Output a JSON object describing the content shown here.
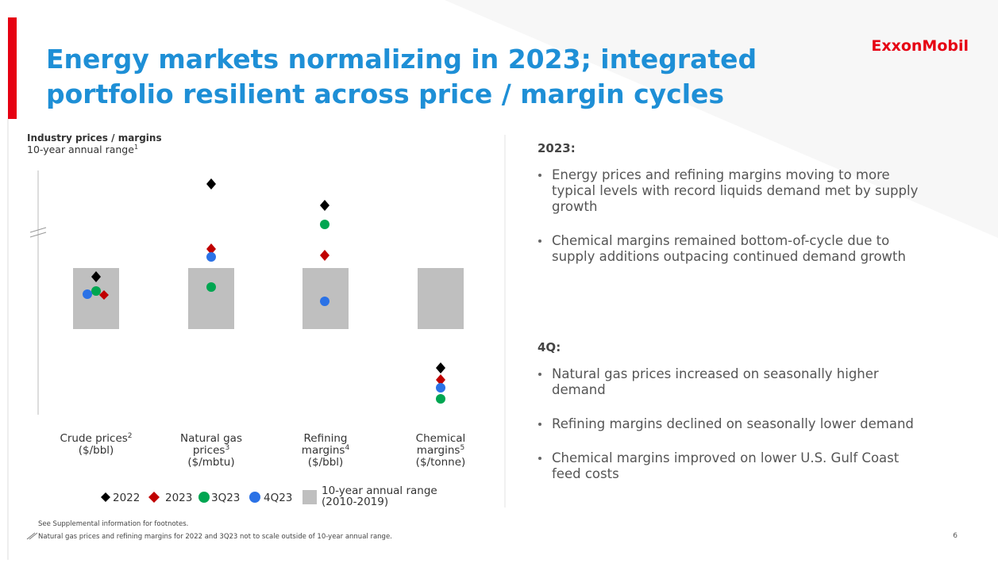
{
  "slide": {
    "title": [
      "Energy markets normalizing in 2023; integrated",
      "portfolio resilient across price / margin cycles"
    ],
    "logo": "ExxonMobil",
    "chart": {
      "heading": "Industry prices / margins",
      "subheading": "10-year annual range",
      "subheading_sup": "1",
      "categories": [
        {
          "lines": [
            "Crude prices"
          ],
          "sup": "2",
          "unit": "($/bbl)"
        },
        {
          "lines": [
            "Natural gas",
            "prices"
          ],
          "sup": "3",
          "unit": "($/mbtu)"
        },
        {
          "lines": [
            "Refining",
            "margins"
          ],
          "sup": "4",
          "unit": "($/bbl)"
        },
        {
          "lines": [
            "Chemical",
            "margins"
          ],
          "sup": "5",
          "unit": "($/tonne)"
        }
      ],
      "legend": [
        "2022",
        "2023",
        "3Q23",
        "4Q23"
      ],
      "legend_range": [
        "10-year annual range",
        "(2010-2019)"
      ]
    },
    "sections": [
      {
        "heading": "2023:",
        "bullets": [
          [
            "Energy prices and refining margins moving to more",
            "typical levels with record liquids demand met by supply",
            "growth"
          ],
          [
            "Chemical margins remained bottom-of-cycle due to",
            "supply additions outpacing continued demand growth"
          ]
        ]
      },
      {
        "heading": "4Q:",
        "bullets": [
          [
            "Natural gas prices increased on seasonally higher",
            "demand"
          ],
          [
            "Refining margins declined on seasonally lower demand"
          ],
          [
            "Chemical margins improved on lower U.S. Gulf Coast",
            "feed costs"
          ]
        ]
      }
    ],
    "footnotes": [
      "See Supplemental information for footnotes.",
      "Natural gas prices and refining margins for 2022 and 3Q23 not to scale outside of 10-year annual range."
    ],
    "page_number": "6"
  }
}
